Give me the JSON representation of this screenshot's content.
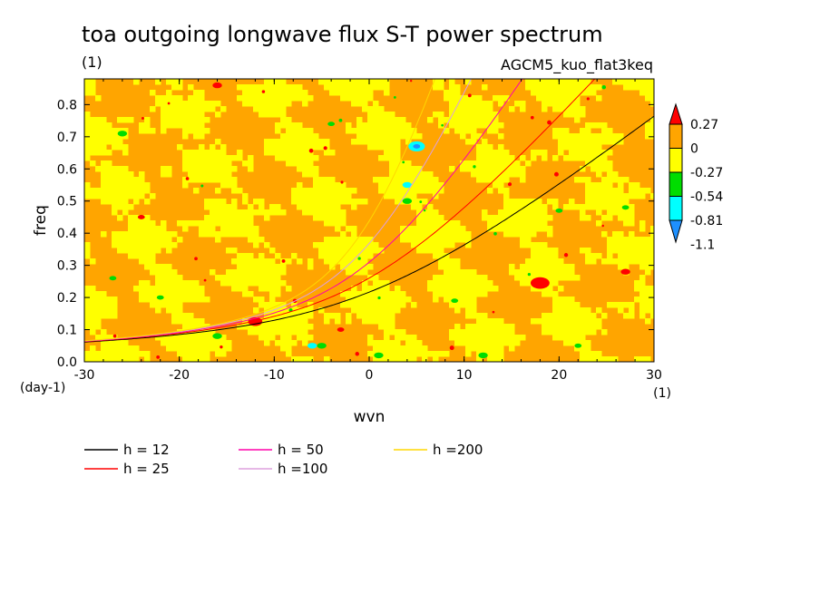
{
  "chart_data": {
    "type": "heatmap",
    "title": "toa outgoing longwave flux S-T power spectrum",
    "subtitle_left": "(1)",
    "subtitle_right": "AGCM5_kuo_flat3keq",
    "xlabel": "wvn",
    "ylabel": "freq",
    "x_unit": "(1)",
    "y_unit": "(day-1)",
    "xlim": [
      -30,
      30
    ],
    "ylim": [
      0,
      0.88
    ],
    "xticks": [
      -30,
      -20,
      -10,
      0,
      10,
      20,
      30
    ],
    "xtick_labels": [
      "-30",
      "-20",
      "-10",
      "0",
      "10",
      "20",
      "30"
    ],
    "yticks": [
      0,
      0.1,
      0.2,
      0.3,
      0.4,
      0.5,
      0.6,
      0.7,
      0.8
    ],
    "ytick_labels": [
      "0.0",
      "0.1",
      "0.2",
      "0.3",
      "0.4",
      "0.5",
      "0.6",
      "0.7",
      "0.8"
    ],
    "colorbar": {
      "levels": [
        {
          "label": "0.27",
          "color": "#ff0000"
        },
        {
          "label": "0",
          "color": "#ffa500"
        },
        {
          "label": "-0.27",
          "color": "#ffff00"
        },
        {
          "label": "-0.54",
          "color": "#00dd00"
        },
        {
          "label": "-0.81",
          "color": "#00ffff"
        },
        {
          "label": "-1.1",
          "color": "#1e90ff"
        }
      ]
    },
    "field_note": "noisy field of values between 0 and -0.27 with scattered extremes",
    "dispersion_curves": [
      {
        "name": "h = 12",
        "color": "#000000",
        "h": 12
      },
      {
        "name": "h = 25",
        "color": "#ff0000",
        "h": 25
      },
      {
        "name": "h = 50",
        "color": "#ff00aa",
        "h": 50
      },
      {
        "name": "h =100",
        "color": "#dda0dd",
        "h": 100
      },
      {
        "name": "h =200",
        "color": "#ffd700",
        "h": 200
      }
    ]
  }
}
